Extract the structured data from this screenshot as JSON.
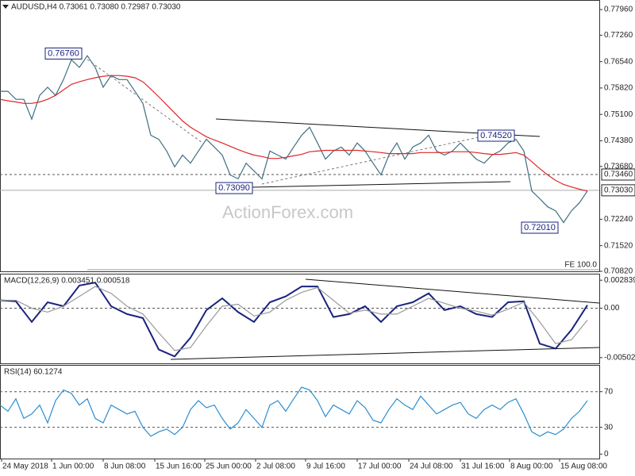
{
  "chart_data": [
    {
      "type": "line",
      "title": "AUDUSD,H4  0.73061 0.73080 0.72987 0.73030",
      "watermark": "ActionForex.com",
      "note": "FE 100.0",
      "x": [
        0,
        1,
        2,
        3,
        4,
        5,
        6,
        7,
        8,
        9,
        10,
        11,
        12,
        13,
        14,
        15,
        16,
        17,
        18,
        19,
        20,
        21,
        22,
        23,
        24,
        25,
        26,
        27,
        28,
        29,
        30,
        31,
        32,
        33,
        34,
        35,
        36,
        37,
        38,
        39,
        40,
        41,
        42,
        43,
        44,
        45,
        46,
        47,
        48,
        49,
        50,
        51,
        52,
        53,
        54,
        55,
        56,
        57,
        58,
        59,
        60,
        61,
        62,
        63,
        64,
        65,
        66,
        67,
        68,
        69,
        70,
        71,
        72,
        73,
        74
      ],
      "series": [
        {
          "color": "#3f6f82",
          "values": [
            0.7573,
            0.7573,
            0.7551,
            0.7551,
            0.7497,
            0.7562,
            0.7584,
            0.7562,
            0.7605,
            0.7659,
            0.7638,
            0.767,
            0.7638,
            0.7584,
            0.7616,
            0.7605,
            0.7605,
            0.7573,
            0.754,
            0.7453,
            0.7442,
            0.741,
            0.7367,
            0.7399,
            0.7377,
            0.741,
            0.7442,
            0.7421,
            0.7399,
            0.7345,
            0.7334,
            0.7377,
            0.7356,
            0.7334,
            0.741,
            0.7399,
            0.7388,
            0.7421,
            0.7453,
            0.7475,
            0.7432,
            0.7388,
            0.741,
            0.7421,
            0.7399,
            0.7432,
            0.741,
            0.7377,
            0.7345,
            0.7399,
            0.7432,
            0.7388,
            0.7421,
            0.7432,
            0.7453,
            0.741,
            0.7399,
            0.741,
            0.7432,
            0.741,
            0.7388,
            0.7377,
            0.7399,
            0.741,
            0.7432,
            0.7442,
            0.741,
            0.7301,
            0.728,
            0.7258,
            0.7247,
            0.7215,
            0.7247,
            0.7269,
            0.7301
          ]
        },
        {
          "color": "#e0262b",
          "values": [
            0.7551,
            0.7547,
            0.7544,
            0.754,
            0.754,
            0.7544,
            0.7551,
            0.7562,
            0.7577,
            0.7592,
            0.7599,
            0.7605,
            0.761,
            0.7614,
            0.7616,
            0.7616,
            0.7614,
            0.761,
            0.7599,
            0.7579,
            0.7558,
            0.7536,
            0.7514,
            0.7492,
            0.7475,
            0.7462,
            0.7449,
            0.744,
            0.7432,
            0.7423,
            0.7414,
            0.7406,
            0.7399,
            0.7395,
            0.739,
            0.739,
            0.7393,
            0.7397,
            0.7401,
            0.7408,
            0.741,
            0.7412,
            0.7412,
            0.7412,
            0.7412,
            0.7412,
            0.741,
            0.7408,
            0.7406,
            0.7403,
            0.7403,
            0.7403,
            0.7403,
            0.7406,
            0.7406,
            0.7406,
            0.7406,
            0.7408,
            0.7408,
            0.7408,
            0.7406,
            0.7403,
            0.7401,
            0.7401,
            0.7403,
            0.7406,
            0.7399,
            0.7381,
            0.7362,
            0.7345,
            0.733,
            0.7319,
            0.7312,
            0.7306,
            0.7301
          ]
        }
      ],
      "xlim": [
        0,
        75.5
      ],
      "ylim": [
        0.7082,
        0.7822
      ],
      "yticks": [
        {
          "value": 0.7796,
          "label": "0.77960"
        },
        {
          "value": 0.7726,
          "label": "0.77260"
        },
        {
          "value": 0.7654,
          "label": "0.76540"
        },
        {
          "value": 0.7582,
          "label": "0.75820"
        },
        {
          "value": 0.751,
          "label": "0.75100"
        },
        {
          "value": 0.7438,
          "label": "0.74380"
        },
        {
          "value": 0.7368,
          "label": "0.73680"
        },
        {
          "value": 0.7224,
          "label": "0.72240"
        },
        {
          "value": 0.7152,
          "label": "0.71520"
        },
        {
          "value": 0.7082,
          "label": "0.70820"
        }
      ],
      "hlines": [
        {
          "value": 0.7346,
          "label": "0.73460",
          "style": "dashed"
        },
        {
          "value": 0.7303,
          "label": "0.73030",
          "style": "solid"
        }
      ],
      "annotations": [
        {
          "text": "0.76760",
          "x": 10.5,
          "value": 0.7676
        },
        {
          "text": "0.73090",
          "x": 32,
          "value": 0.7309
        },
        {
          "text": "0.74520",
          "x": 65,
          "value": 0.7452
        },
        {
          "text": "0.72010",
          "x": 70.5,
          "value": 0.7201
        }
      ]
    },
    {
      "type": "line",
      "title": "MACD(12,26,9) 0.003451 0.000518",
      "x": [
        0,
        2,
        4,
        6,
        8,
        10,
        12,
        14,
        16,
        18,
        20,
        22,
        24,
        26,
        28,
        30,
        32,
        34,
        36,
        38,
        40,
        42,
        44,
        46,
        48,
        50,
        52,
        54,
        56,
        58,
        60,
        62,
        64,
        66,
        68,
        70,
        72,
        74
      ],
      "series": [
        {
          "color": "#1a237e",
          "values": [
            0.0008,
            0.0007,
            -0.0014,
            0.0006,
            0.0002,
            0.0023,
            0.0026,
            0.0002,
            -0.0006,
            -0.001,
            -0.0042,
            -0.0049,
            -0.003,
            -0.0002,
            0.001,
            -0.0004,
            -0.0014,
            0.0006,
            0.0012,
            0.0022,
            0.0022,
            -0.0009,
            -0.0006,
            0.0002,
            -0.0014,
            0.0002,
            0.0006,
            0.0015,
            -0.0002,
            0.0002,
            -0.0006,
            -0.0009,
            0.0006,
            0.0007,
            -0.0036,
            -0.0041,
            -0.0022,
            0.0003
          ]
        },
        {
          "color": "#9a9a9a",
          "values": [
            0.0008,
            0.0008,
            0,
            -0.0004,
            0.0002,
            0.0012,
            0.0022,
            0.0015,
            0.0002,
            -0.0006,
            -0.0025,
            -0.0043,
            -0.004,
            -0.0018,
            0.0002,
            0.0004,
            -0.0008,
            -0.0004,
            0.0008,
            0.0016,
            0.0021,
            0.0008,
            -0.0005,
            -0.0002,
            -0.0006,
            -0.0006,
            0.0002,
            0.001,
            0.0005,
            0,
            -0.0003,
            -0.0007,
            -0.0001,
            0.0006,
            -0.0014,
            -0.0036,
            -0.0032,
            -0.0012
          ]
        }
      ],
      "xlim": [
        0,
        75.5
      ],
      "ylim": [
        -0.0056,
        0.0035
      ],
      "yticks": [
        0.002839,
        {
          "value": 0,
          "label": "0.00"
        },
        -0.005021
      ],
      "hlines": [
        {
          "value": 0,
          "style": "dashed"
        }
      ]
    },
    {
      "type": "line",
      "title": "RSI(14) 60.1274",
      "x": [
        0,
        1,
        2,
        3,
        4,
        5,
        6,
        7,
        8,
        9,
        10,
        11,
        12,
        13,
        14,
        15,
        16,
        17,
        18,
        19,
        20,
        21,
        22,
        23,
        24,
        25,
        26,
        27,
        28,
        29,
        30,
        31,
        32,
        33,
        34,
        35,
        36,
        37,
        38,
        39,
        40,
        41,
        42,
        43,
        44,
        45,
        46,
        47,
        48,
        49,
        50,
        51,
        52,
        53,
        54,
        55,
        56,
        57,
        58,
        59,
        60,
        61,
        62,
        63,
        64,
        65,
        66,
        67,
        68,
        69,
        70,
        71,
        72,
        73,
        74
      ],
      "series": [
        {
          "color": "#2b8fd0",
          "values": [
            55,
            48,
            62,
            40,
            45,
            55,
            35,
            60,
            72,
            68,
            55,
            62,
            40,
            35,
            55,
            50,
            45,
            48,
            30,
            20,
            25,
            28,
            22,
            30,
            50,
            60,
            52,
            55,
            40,
            28,
            35,
            50,
            40,
            30,
            55,
            60,
            48,
            62,
            75,
            72,
            60,
            42,
            55,
            50,
            45,
            60,
            52,
            38,
            35,
            50,
            62,
            55,
            50,
            65,
            55,
            45,
            50,
            55,
            58,
            45,
            40,
            50,
            55,
            50,
            58,
            62,
            45,
            25,
            20,
            25,
            22,
            28,
            40,
            48,
            60
          ]
        }
      ],
      "xlim": [
        0,
        75.5
      ],
      "ylim": [
        -5,
        100
      ],
      "yticks": [
        70,
        30,
        0
      ],
      "hlines": [
        {
          "value": 70,
          "style": "dashed"
        },
        {
          "value": 30,
          "style": "dashed"
        }
      ],
      "xticks": [
        {
          "value": 0.2,
          "label": "24 May 2018"
        },
        {
          "value": 6.5,
          "label": "1 Jun 00:00"
        },
        {
          "value": 13,
          "label": "8 Jun 08:00"
        },
        {
          "value": 19.5,
          "label": "15 Jun 16:00"
        },
        {
          "value": 25.8,
          "label": "25 Jun 00:00"
        },
        {
          "value": 32.2,
          "label": "2 Jul 08:00"
        },
        {
          "value": 38.5,
          "label": "9 Jul 16:00"
        },
        {
          "value": 45,
          "label": "17 Jul 00:00"
        },
        {
          "value": 51.5,
          "label": "24 Jul 08:00"
        },
        {
          "value": 58,
          "label": "31 Jul 16:00"
        },
        {
          "value": 64.2,
          "label": "8 Aug 00:00"
        },
        {
          "value": 70.5,
          "label": "15 Aug 08:00"
        }
      ]
    }
  ]
}
